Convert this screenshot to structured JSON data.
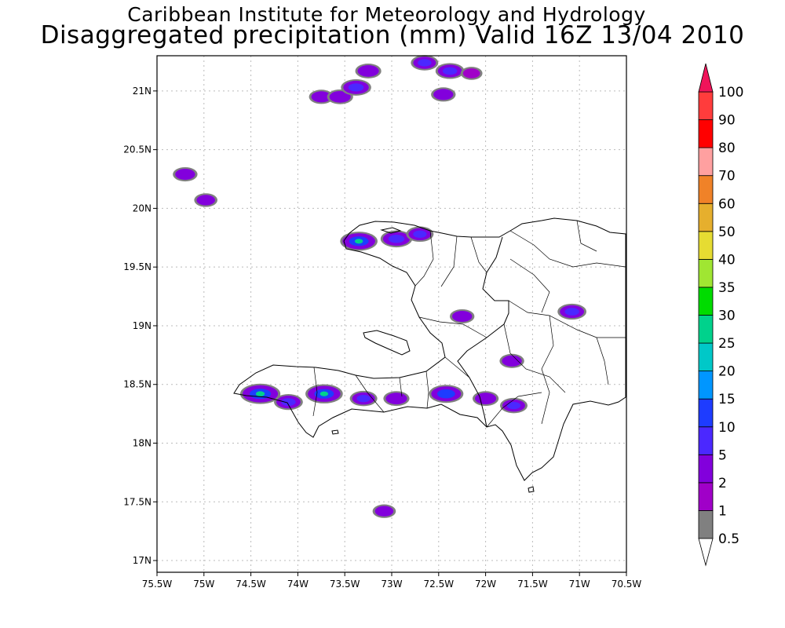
{
  "title": "Caribbean Institute for Meteorology and Hydrology",
  "subtitle": "Disaggregated precipitation (mm) Valid 16Z 13/04 2010",
  "map": {
    "lon_range": [
      -75.5,
      -70.5
    ],
    "lat_range": [
      16.9,
      21.3
    ],
    "lon_ticks": [
      -75.5,
      -75,
      -74.5,
      -74,
      -73.5,
      -73,
      -72.5,
      -72,
      -71.5,
      -71,
      -70.5
    ],
    "lat_ticks": [
      17,
      17.5,
      18,
      18.5,
      19,
      19.5,
      20,
      20.5,
      21
    ],
    "lon_tick_labels": [
      "75.5W",
      "75W",
      "74.5W",
      "74W",
      "73.5W",
      "73W",
      "72.5W",
      "72W",
      "71.5W",
      "71W",
      "70.5W"
    ],
    "lat_tick_labels": [
      "17N",
      "17.5N",
      "18N",
      "18.5N",
      "19N",
      "19.5N",
      "20N",
      "20.5N",
      "21N"
    ],
    "grid": true
  },
  "colorbar": {
    "levels": [
      "0.5",
      "1",
      "2",
      "5",
      "10",
      "15",
      "20",
      "25",
      "30",
      "35",
      "40",
      "50",
      "60",
      "70",
      "80",
      "90",
      "100"
    ],
    "colors": [
      "#808080",
      "#a000c8",
      "#8200dc",
      "#4b28ff",
      "#1e3cff",
      "#0096ff",
      "#00c8c8",
      "#00d28c",
      "#00dc00",
      "#a0e632",
      "#e6dc32",
      "#e6af2d",
      "#f08228",
      "#ffa0a0",
      "#ff0000",
      "#ff3c3c"
    ],
    "lower_arrow_color": "#ffffff",
    "upper_arrow_color": "#f0145a"
  },
  "chart_data": {
    "type": "heatmap",
    "title": "Caribbean Institute for Meteorology and Hydrology",
    "subtitle": "Disaggregated precipitation (mm) Valid 16Z 13/04 2010",
    "xlabel": "",
    "ylabel": "",
    "xlim": [
      -75.5,
      -70.5
    ],
    "ylim": [
      16.9,
      21.3
    ],
    "cells": [
      {
        "lon": -73.75,
        "lat": 20.95,
        "value": 3
      },
      {
        "lon": -73.55,
        "lat": 20.95,
        "value": 4
      },
      {
        "lon": -73.38,
        "lat": 21.03,
        "value": 7
      },
      {
        "lon": -73.25,
        "lat": 21.17,
        "value": 4
      },
      {
        "lon": -72.65,
        "lat": 21.24,
        "value": 5
      },
      {
        "lon": -72.38,
        "lat": 21.17,
        "value": 6
      },
      {
        "lon": -72.45,
        "lat": 20.97,
        "value": 3
      },
      {
        "lon": -72.15,
        "lat": 21.15,
        "value": 1
      },
      {
        "lon": -75.2,
        "lat": 20.29,
        "value": 3
      },
      {
        "lon": -74.98,
        "lat": 20.07,
        "value": 2
      },
      {
        "lon": -73.35,
        "lat": 19.72,
        "value": 12
      },
      {
        "lon": -72.95,
        "lat": 19.74,
        "value": 8
      },
      {
        "lon": -72.7,
        "lat": 19.78,
        "value": 5
      },
      {
        "lon": -72.25,
        "lat": 19.08,
        "value": 3
      },
      {
        "lon": -71.08,
        "lat": 19.12,
        "value": 6
      },
      {
        "lon": -74.4,
        "lat": 18.42,
        "value": 14
      },
      {
        "lon": -74.1,
        "lat": 18.35,
        "value": 6
      },
      {
        "lon": -73.72,
        "lat": 18.42,
        "value": 12
      },
      {
        "lon": -73.3,
        "lat": 18.38,
        "value": 5
      },
      {
        "lon": -72.95,
        "lat": 18.38,
        "value": 4
      },
      {
        "lon": -72.42,
        "lat": 18.42,
        "value": 10
      },
      {
        "lon": -72.0,
        "lat": 18.38,
        "value": 4
      },
      {
        "lon": -71.7,
        "lat": 18.32,
        "value": 5
      },
      {
        "lon": -71.72,
        "lat": 18.7,
        "value": 3
      },
      {
        "lon": -73.08,
        "lat": 17.42,
        "value": 2
      }
    ]
  }
}
